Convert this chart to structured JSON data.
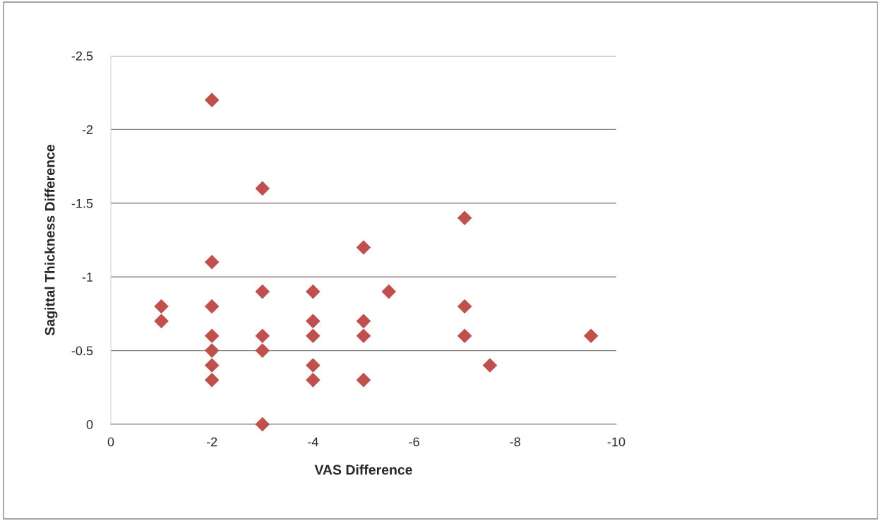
{
  "chart_data": {
    "type": "scatter",
    "xlabel": "VAS Difference",
    "ylabel": "Sagittal Thickness Difference",
    "xlim": [
      0,
      -10
    ],
    "xticks": [
      0,
      -2,
      -4,
      -6,
      -8,
      -10
    ],
    "ylim": [
      0,
      -2.5
    ],
    "yticks": [
      0,
      -0.5,
      -1,
      -1.5,
      -2,
      -2.5
    ],
    "grid": "y",
    "marker": "diamond",
    "legend": false,
    "series": [
      {
        "color": "#c0504d",
        "x": [
          -1,
          -1,
          -2,
          -2,
          -2,
          -2,
          -2,
          -2,
          -2,
          -3,
          -3,
          -3,
          -3,
          -3,
          -4,
          -4,
          -4,
          -4,
          -4,
          -5,
          -5,
          -5,
          -5,
          -5.5,
          -7,
          -7,
          -7,
          -7.5,
          -9.5
        ],
        "values": [
          -0.8,
          -0.7,
          -2.2,
          -1.1,
          -0.8,
          -0.6,
          -0.5,
          -0.4,
          -0.3,
          -1.6,
          -0.9,
          -0.6,
          -0.5,
          0,
          -0.9,
          -0.7,
          -0.6,
          -0.4,
          -0.3,
          -1.2,
          -0.7,
          -0.6,
          -0.3,
          -0.9,
          -1.4,
          -0.8,
          -0.6,
          -0.4,
          -0.6
        ]
      }
    ]
  }
}
